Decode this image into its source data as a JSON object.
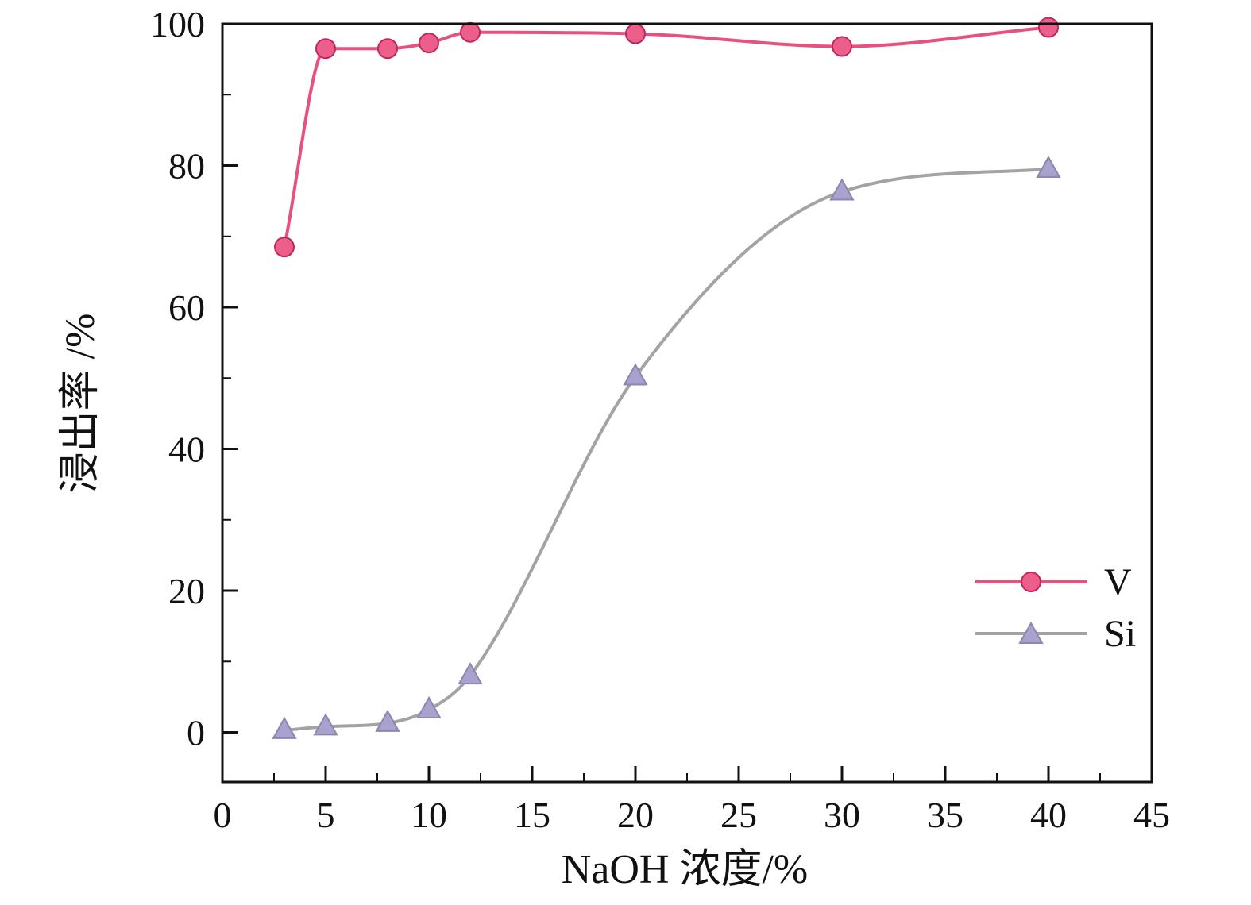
{
  "figure": {
    "background": "#ffffff"
  },
  "chart_data": {
    "type": "line",
    "title": "",
    "xlabel": "NaOH 浓度/%",
    "ylabel": "浸出率 /%",
    "xlim": [
      0,
      45
    ],
    "ylim": [
      -7,
      100
    ],
    "x_ticks": [
      0,
      5,
      10,
      15,
      20,
      25,
      30,
      35,
      40,
      45
    ],
    "y_ticks": [
      0,
      20,
      40,
      60,
      80,
      100
    ],
    "x_minor_step": 2.5,
    "y_minor_step": 10,
    "grid": false,
    "legend_position": "right-center",
    "x": [
      3,
      5,
      8,
      10,
      12,
      20,
      30,
      40
    ],
    "series": [
      {
        "name": "V",
        "marker": "circle",
        "line_color": "#e8517e",
        "marker_fill": "#ec5f8a",
        "marker_edge": "#c2265c",
        "values": [
          68.5,
          96.5,
          96.5,
          97.3,
          98.8,
          98.6,
          96.8,
          99.5
        ]
      },
      {
        "name": "Si",
        "marker": "triangle",
        "line_color": "#a3a3a3",
        "marker_fill": "#a8a2ce",
        "marker_edge": "#8c86b0",
        "values": [
          0.3,
          0.8,
          1.3,
          3.2,
          8.0,
          50.2,
          76.3,
          79.5
        ]
      }
    ],
    "legend_entries": [
      "V",
      "Si"
    ]
  }
}
